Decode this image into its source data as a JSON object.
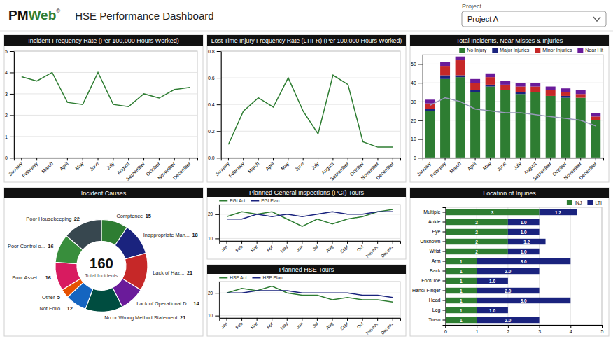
{
  "title": "HSE Performance Dashboard",
  "logo": [
    {
      "text": "PM"
    },
    {
      "text": "Web",
      "color": "#2e7d32"
    },
    {
      "text": "®"
    }
  ],
  "selector": {
    "label": "Project",
    "value": "Project A"
  },
  "chart_data": [
    {
      "type": "line",
      "title": "Incident Frequency Rate (Per 100,000 Hours Worked)",
      "categories": [
        "January",
        "February",
        "March",
        "April",
        "May",
        "June",
        "July",
        "August",
        "September",
        "October",
        "November",
        "December"
      ],
      "values": [
        3.8,
        3.6,
        4.0,
        2.6,
        2.5,
        4.0,
        2.5,
        2.4,
        3.0,
        2.8,
        3.2,
        3.3
      ],
      "color": "#2e7d32",
      "ylim": [
        0,
        5
      ],
      "yticks": [
        0,
        1,
        2,
        3,
        4,
        5
      ],
      "grid": true
    },
    {
      "type": "line",
      "title": "Lost Time Injury Frequency Rate (LTIFR) (Per 100,000 Hours Worked)",
      "categories": [
        "January",
        "February",
        "March",
        "April",
        "May",
        "June",
        "July",
        "August",
        "September",
        "October",
        "November",
        "December"
      ],
      "values": [
        0.1,
        0.35,
        0.45,
        0.38,
        0.6,
        0.35,
        0.18,
        0.62,
        0.55,
        0.12,
        0.08,
        0.08
      ],
      "color": "#2e7d32",
      "ylim": [
        0.0,
        0.8
      ],
      "yticks": [
        {
          "value": 0,
          "label": "0.0"
        },
        0.2,
        0.4,
        0.6,
        0.8
      ],
      "grid": true
    },
    {
      "type": "bar",
      "title": "Total Incidents, Near Misses & Injuries",
      "categories": [
        "January",
        "February",
        "March",
        "April",
        "May",
        "June",
        "July",
        "August",
        "September",
        "October",
        "November",
        "December"
      ],
      "stacked": true,
      "series": [
        {
          "name": "No Injury",
          "color": "#2e7d32",
          "values": [
            25,
            42,
            43,
            35,
            38,
            36,
            34,
            35,
            33,
            32,
            32,
            20
          ]
        },
        {
          "name": "Major Injuries",
          "color": "#1a237e",
          "values": [
            1,
            2,
            1,
            1,
            1,
            0,
            1,
            0,
            0,
            1,
            0,
            0
          ]
        },
        {
          "name": "Minor Injuries",
          "color": "#c62828",
          "values": [
            3,
            5,
            8,
            4,
            4,
            3,
            3,
            3,
            3,
            2,
            2,
            2
          ]
        },
        {
          "name": "Near Hit",
          "color": "#6a1b9a",
          "values": [
            2,
            2,
            2,
            2,
            2,
            2,
            2,
            2,
            2,
            2,
            2,
            2
          ]
        },
        {
          "type": "line",
          "color": "#9999bb",
          "values": [
            28,
            32,
            30,
            26,
            25,
            24,
            24,
            23,
            22,
            21,
            20,
            17
          ]
        }
      ],
      "ylim": [
        0,
        55
      ],
      "yticks": [
        0,
        10,
        20,
        30,
        40,
        50
      ],
      "grid": true,
      "legend": "top-right"
    },
    {
      "type": "donut",
      "title": "Incident Causes",
      "categories": [
        "Comptence",
        "Inappropriate Man...",
        "Lack of Haz...",
        "Lack of Operational D...",
        "No or Wrong Method Statement",
        "Not Follo...",
        "Other",
        "Poor Asset ...",
        "Poor Control o...",
        "Poor Housekeeping"
      ],
      "values": [
        15,
        18,
        21,
        14,
        21,
        12,
        5,
        16,
        16,
        22
      ],
      "colors": [
        "#2e7d32",
        "#1a237e",
        "#c62828",
        "#6a1b9a",
        "#004d40",
        "#1565c0",
        "#e65100",
        "#d81b60",
        "#388e3c",
        "#37474f"
      ],
      "data_labels": true,
      "annotations": [
        "160",
        "Total Incidents"
      ]
    },
    {
      "type": "line",
      "title": "Planned General Inspections (PGI) Tours",
      "categories": [
        "Jan",
        "Feb",
        "Mar",
        "Apr",
        "May",
        "Jun",
        "Jul",
        "Aug",
        "Sept",
        "Oct",
        "Novem.",
        "Decem."
      ],
      "series": [
        {
          "name": "PGI Act",
          "color": "#2e7d32",
          "values": [
            19,
            21,
            20,
            21,
            18,
            15,
            18,
            16,
            18,
            19,
            21,
            22
          ]
        },
        {
          "name": "PGI Plan",
          "color": "#1a237e",
          "values": [
            18,
            18,
            20,
            19,
            20,
            19,
            20,
            21,
            20,
            20,
            21,
            21
          ]
        }
      ],
      "ylim": [
        9,
        24
      ],
      "yticks": [
        10,
        20
      ],
      "grid": true,
      "legend": "top-left"
    },
    {
      "type": "line",
      "title": "Planned HSE Tours",
      "categories": [
        "Jan",
        "Feb",
        "Mar",
        "Apr",
        "May",
        "Jun",
        "Jul",
        "Aug",
        "Sept",
        "Oct",
        "Novem.",
        "Decem."
      ],
      "series": [
        {
          "name": "HSE Act",
          "color": "#2e7d32",
          "values": [
            20,
            22,
            21,
            23,
            20,
            19,
            19,
            17,
            18,
            17,
            17,
            16
          ]
        },
        {
          "name": "HSE Plan",
          "color": "#1a237e",
          "values": [
            20,
            20,
            21,
            21,
            21,
            20,
            20,
            20,
            20,
            19,
            19,
            18
          ]
        }
      ],
      "ylim": [
        9,
        25
      ],
      "yticks": [
        10,
        20
      ],
      "grid": true,
      "legend": "top-left"
    },
    {
      "type": "bar",
      "orientation": "horizontal",
      "stacked": true,
      "title": "Location of Injuries",
      "categories": [
        "Multiple",
        "Ankle",
        "Eye",
        "Unknown",
        "Wrist",
        "Arm",
        "Back",
        "Foot/Toe",
        "Hand/ Finger",
        "Head",
        "Leg",
        "Torso"
      ],
      "series": [
        {
          "name": "INJ",
          "color": "#2e7d32",
          "values": [
            3,
            2,
            2,
            2,
            2,
            1,
            1,
            1,
            1,
            1,
            1,
            1
          ]
        },
        {
          "name": "LTI",
          "color": "#1a237e",
          "values": [
            1.2,
            1.0,
            1.0,
            1.2,
            1.0,
            3.0,
            2.0,
            1.0,
            2.0,
            3.0,
            1.0,
            2.0
          ],
          "value_labels": [
            "1.2",
            "1.0",
            "1.0",
            "1.2",
            "1.0",
            "3.0",
            "2.0",
            "1.0",
            "2.0",
            "3.0",
            "1.0",
            "2.0"
          ]
        }
      ],
      "xlim": [
        0,
        5
      ],
      "xticks": [
        0,
        1,
        2,
        3,
        4,
        5
      ],
      "grid": true,
      "legend": "top-right",
      "data_labels": true
    }
  ]
}
